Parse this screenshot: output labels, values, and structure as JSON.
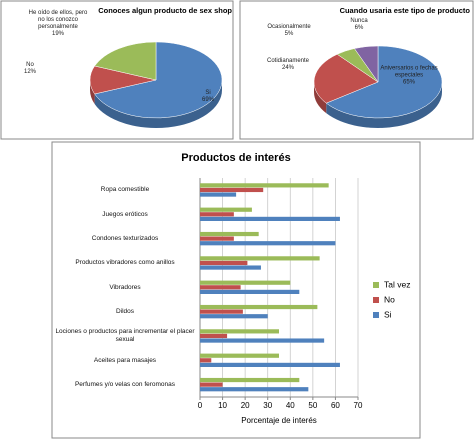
{
  "chart_data": [
    {
      "type": "pie",
      "title": "Conoces algun producto de sex shop",
      "categories": [
        "Si",
        "No",
        "He oído de ellos, pero no los conozco personalmente"
      ],
      "values": [
        69,
        12,
        19
      ],
      "value_labels": [
        "69%",
        "12%",
        "19%"
      ],
      "colors": [
        "#4f81bd",
        "#c0504d",
        "#9bbb59"
      ]
    },
    {
      "type": "pie",
      "title": "Cuando usaria este tipo de producto",
      "categories": [
        "Aniversarios o fechas especiales",
        "Cotidianamente",
        "Ocasionalmente",
        "Nunca"
      ],
      "values": [
        65,
        24,
        5,
        6
      ],
      "value_labels": [
        "65%",
        "24%",
        "5%",
        "6%"
      ],
      "colors": [
        "#4f81bd",
        "#c0504d",
        "#9bbb59",
        "#8064a2"
      ]
    },
    {
      "type": "bar",
      "orientation": "horizontal",
      "title": "Productos de interés",
      "x_label": "Porcentaje de interés",
      "categories": [
        "Ropa comestible",
        "Juegos eróticos",
        "Condones texturizados",
        "Productos vibradores como anillos",
        "Vibradores",
        "Dildos",
        "Lociones o productos para incrementar el placer sexual",
        "Aceites para masajes",
        "Perfumes y/o velas con feromonas"
      ],
      "series": [
        {
          "name": "Tal vez",
          "color": "#9bbb59",
          "values": [
            57,
            23,
            26,
            53,
            40,
            52,
            35,
            35,
            44
          ]
        },
        {
          "name": "No",
          "color": "#c0504d",
          "values": [
            28,
            15,
            15,
            21,
            18,
            19,
            12,
            5,
            10
          ]
        },
        {
          "name": "Si",
          "color": "#4f81bd",
          "values": [
            16,
            62,
            60,
            27,
            44,
            30,
            55,
            62,
            48
          ]
        }
      ],
      "xlim": [
        0,
        70
      ],
      "xticks": [
        0,
        10,
        20,
        30,
        40,
        50,
        60,
        70
      ],
      "grid": true,
      "legend": "right"
    }
  ]
}
